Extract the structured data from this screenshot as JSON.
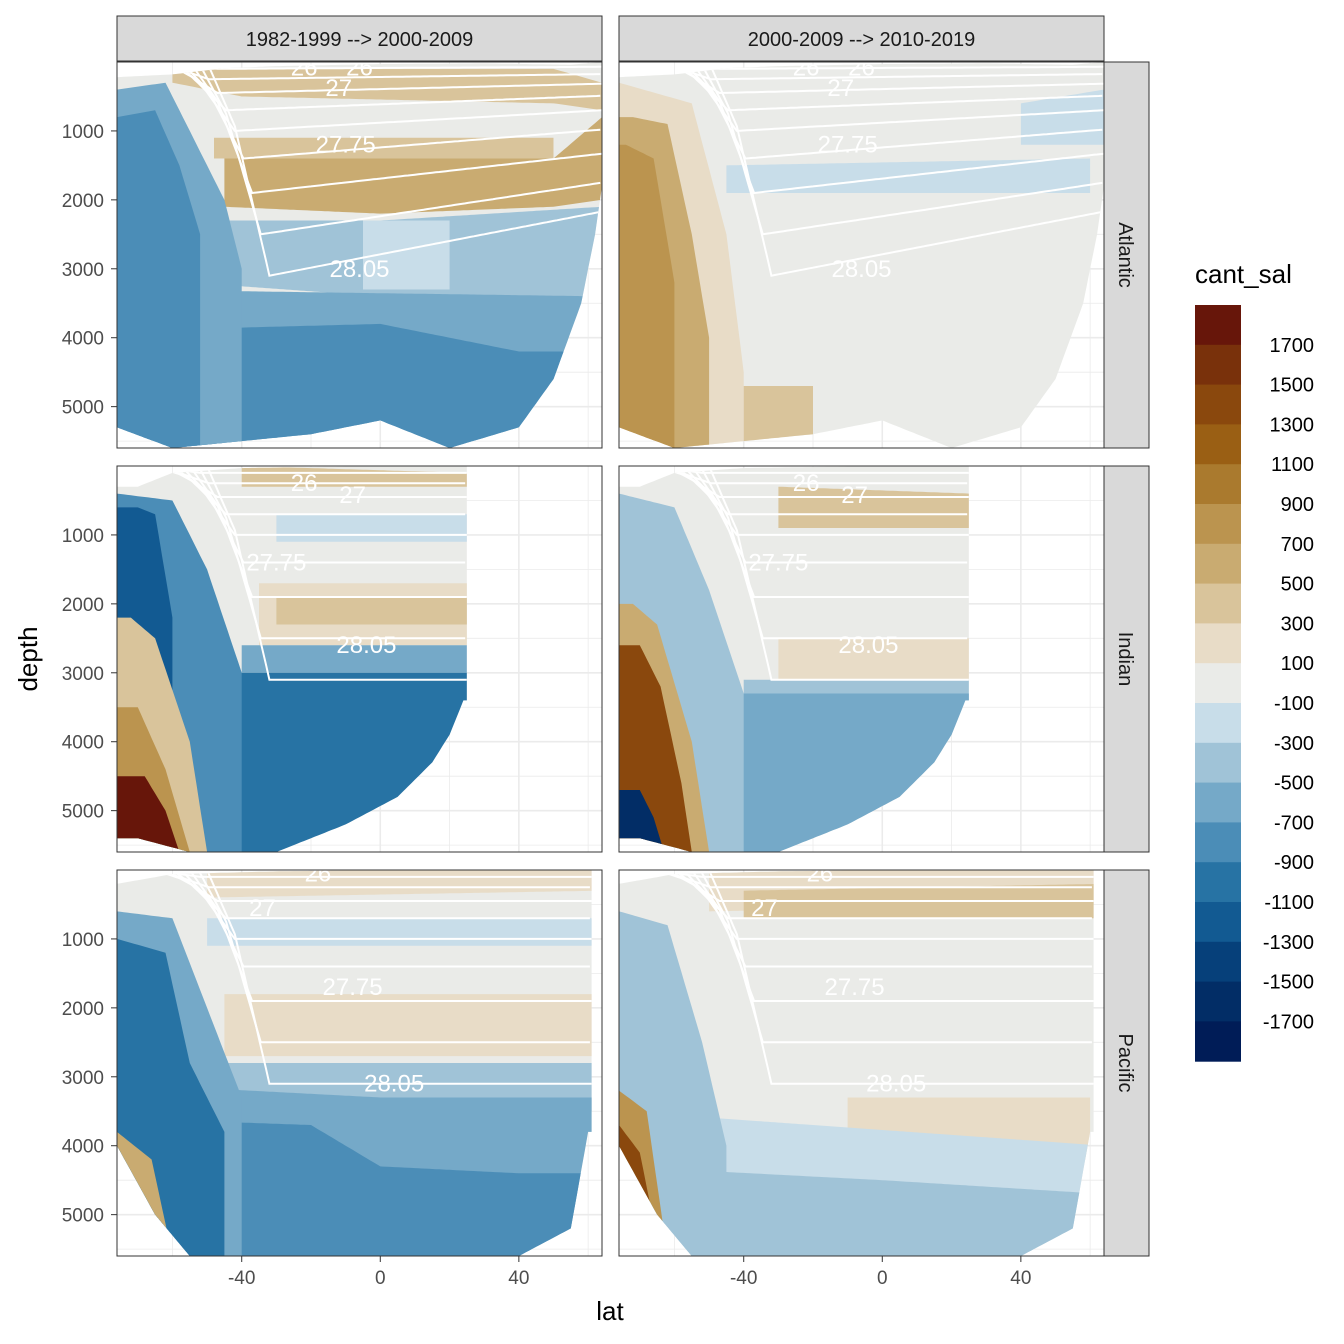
{
  "chart_data": {
    "type": "heatmap",
    "xlabel": "lat",
    "ylabel": "depth",
    "xlim": [
      -76,
      64
    ],
    "ylim": [
      5600,
      0
    ],
    "x_ticks": [
      -40,
      0,
      40
    ],
    "x_tick_labels": [
      "-40",
      "0",
      "40"
    ],
    "y_ticks": [
      1000,
      2000,
      3000,
      4000,
      5000
    ],
    "y_tick_labels": [
      "1000",
      "2000",
      "3000",
      "4000",
      "5000"
    ],
    "columns": [
      "1982-1999 --> 2000-2009",
      "2000-2009 --> 2010-2019"
    ],
    "rows": [
      "Atlantic",
      "Indian",
      "Pacific"
    ],
    "legend": {
      "title": "cant_sal",
      "labels": [
        "1700",
        "1500",
        "1300",
        "1100",
        "900",
        "700",
        "500",
        "300",
        "100",
        "-100",
        "-300",
        "-500",
        "-700",
        "-900",
        "-1100",
        "-1300",
        "-1500",
        "-1700"
      ],
      "colors": [
        "#67160a",
        "#79310b",
        "#8a480d",
        "#9a5f14",
        "#aa7a2e",
        "#bb944f",
        "#c9ab71",
        "#d9c49b",
        "#e8dcc7",
        "#eaebe8",
        "#c8dde9",
        "#a0c3d7",
        "#75a9c8",
        "#4b8db7",
        "#2773a4",
        "#125a92",
        "#06407a",
        "#022d66",
        "#001c57"
      ]
    },
    "contour_labels": [
      "26",
      "27",
      "27.75",
      "28.05"
    ],
    "notes": "Six-panel faceted contour plot of anthropogenic salinity change (cant_sal) by latitude and depth for three basins and two decadal transitions; white isopycnal contours overlaid."
  }
}
